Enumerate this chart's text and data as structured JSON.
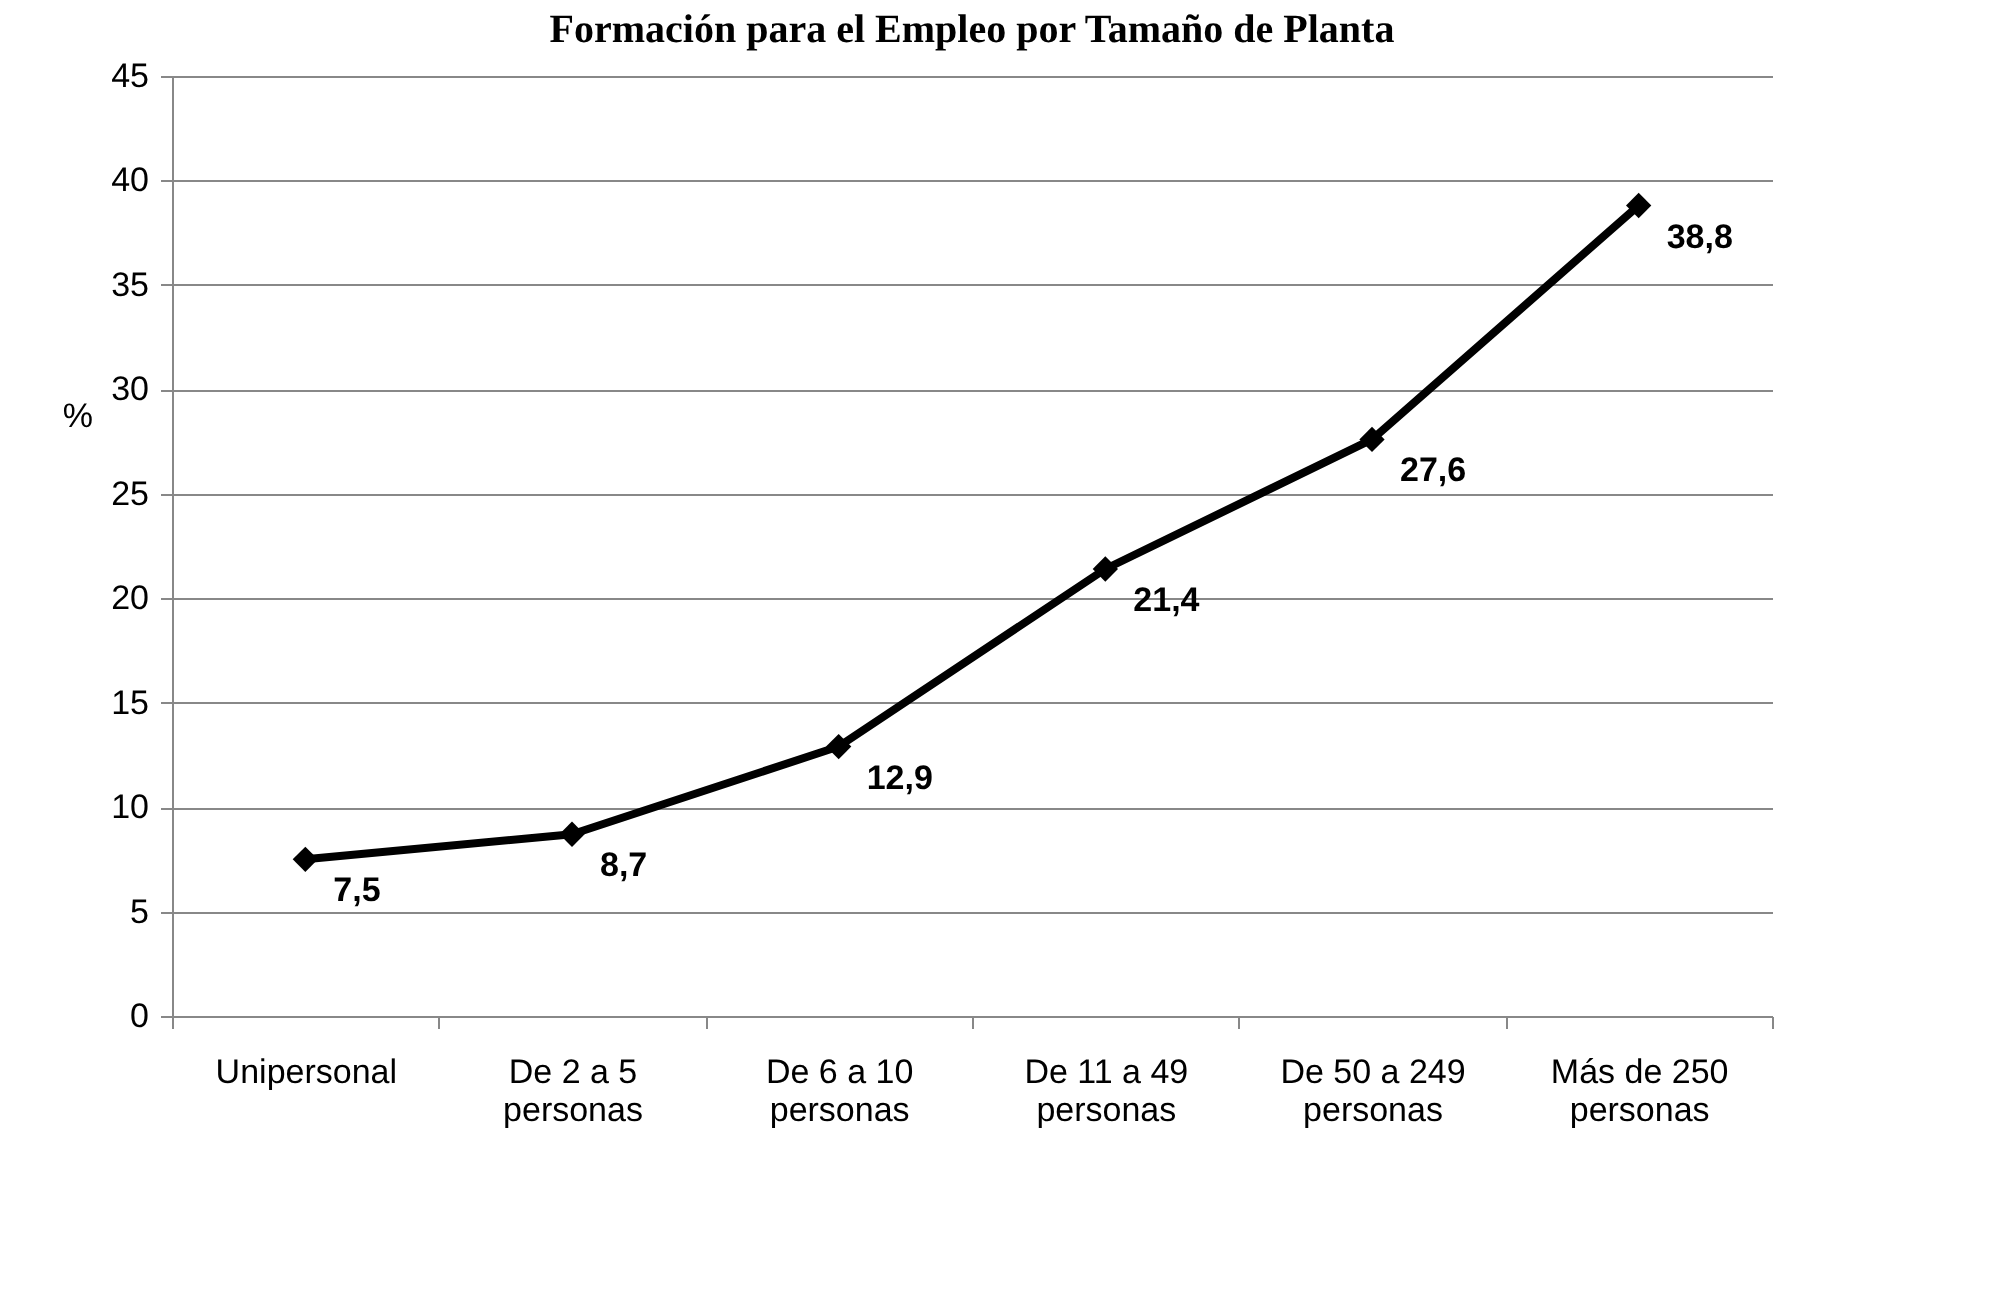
{
  "chart_data": {
    "type": "line",
    "title": "Formación para el Empleo por Tamaño de Planta",
    "ylabel": "%",
    "categories": [
      "Unipersonal",
      "De 2 a 5\npersonas",
      "De 6 a 10\npersonas",
      "De 11 a 49\npersonas",
      "De 50 a 249\npersonas",
      "Más de 250\npersonas"
    ],
    "series": [
      {
        "color": "#000000",
        "values": [
          7.5,
          8.7,
          12.9,
          21.4,
          27.6,
          38.8
        ],
        "value_labels": [
          "7,5",
          "8,7",
          "12,9",
          "21,4",
          "27,6",
          "38,8"
        ]
      }
    ],
    "ylim": [
      0,
      45
    ],
    "yticks": [
      0,
      5,
      10,
      15,
      20,
      25,
      30,
      35,
      40,
      45
    ],
    "grid": "y",
    "marker": "diamond",
    "line_style": "solid"
  }
}
